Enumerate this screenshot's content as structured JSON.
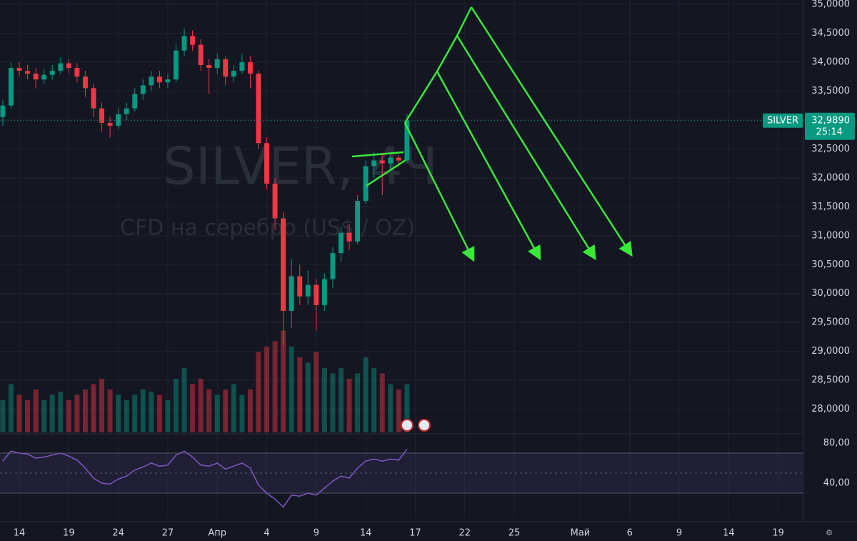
{
  "chart_data": {
    "type": "candlestick",
    "watermark_title": "SILVER, 4Ч",
    "watermark_subtitle": "CFD на серебро (US$ / OZ)",
    "symbol_tag": "SILVER",
    "countdown": "25:14",
    "last_price": {
      "value": 32.989,
      "label": "32,9890"
    },
    "up_color": "#089981",
    "down_color": "#f23645",
    "x": [
      -1.0,
      -0.5,
      0.0,
      0.5,
      1.0,
      1.5,
      2.0,
      2.5,
      3.0,
      3.5,
      4.0,
      4.5,
      5.0,
      5.5,
      6.0,
      6.5,
      7.0,
      7.5,
      8.0,
      8.5,
      9.0,
      9.5,
      10.0,
      10.5,
      11.0,
      11.5,
      12.0,
      12.5,
      13.0,
      13.5,
      14.0,
      14.5,
      15.0,
      15.5,
      16.0,
      16.5,
      17.0,
      17.5,
      18.0,
      18.5,
      19.0,
      19.5,
      20.0,
      20.5,
      21.0,
      21.5,
      22.0,
      22.5,
      23.0,
      23.5
    ],
    "open": [
      33.05,
      33.25,
      33.9,
      33.85,
      33.8,
      33.7,
      33.78,
      33.85,
      33.98,
      33.9,
      33.75,
      33.55,
      33.2,
      32.95,
      32.9,
      33.1,
      33.2,
      33.45,
      33.6,
      33.75,
      33.65,
      33.7,
      34.2,
      34.45,
      34.3,
      33.95,
      33.9,
      34.05,
      33.75,
      33.85,
      34.0,
      33.8,
      32.6,
      31.9,
      31.3,
      29.7,
      30.3,
      29.95,
      30.15,
      29.8,
      30.25,
      30.7,
      31.05,
      30.9,
      31.6,
      32.2,
      32.3,
      32.25,
      32.35,
      32.3
    ],
    "high": [
      33.35,
      34.0,
      34.0,
      33.95,
      33.9,
      33.88,
      33.95,
      34.08,
      34.05,
      33.98,
      33.85,
      33.62,
      33.3,
      33.05,
      33.2,
      33.3,
      33.55,
      33.7,
      33.85,
      33.85,
      33.8,
      34.3,
      34.58,
      34.55,
      34.4,
      34.05,
      34.15,
      34.1,
      33.95,
      34.15,
      34.1,
      33.85,
      32.7,
      32.0,
      31.4,
      30.6,
      30.5,
      30.4,
      30.25,
      30.35,
      30.8,
      31.15,
      31.2,
      31.7,
      32.3,
      32.45,
      32.4,
      32.45,
      32.4,
      33.1
    ],
    "low": [
      32.9,
      33.2,
      33.75,
      33.7,
      33.55,
      33.62,
      33.7,
      33.8,
      33.8,
      33.65,
      33.4,
      33.05,
      32.8,
      32.7,
      32.85,
      33.0,
      33.15,
      33.35,
      33.5,
      33.55,
      33.55,
      33.65,
      34.1,
      34.2,
      33.85,
      33.45,
      33.8,
      33.6,
      33.65,
      33.8,
      33.55,
      32.5,
      31.8,
      31.1,
      29.1,
      29.4,
      29.8,
      29.8,
      29.35,
      29.7,
      30.1,
      30.55,
      30.75,
      30.85,
      31.55,
      32.0,
      31.7,
      32.15,
      32.2,
      32.25
    ],
    "close": [
      33.25,
      33.9,
      33.85,
      33.8,
      33.7,
      33.78,
      33.85,
      33.98,
      33.9,
      33.75,
      33.55,
      33.2,
      32.95,
      32.9,
      33.1,
      33.2,
      33.45,
      33.6,
      33.75,
      33.65,
      33.7,
      34.2,
      34.45,
      34.3,
      33.95,
      33.9,
      34.05,
      33.75,
      33.85,
      34.0,
      33.8,
      32.6,
      31.9,
      31.3,
      29.7,
      30.3,
      29.95,
      30.15,
      29.8,
      30.25,
      30.7,
      31.05,
      30.9,
      31.6,
      32.2,
      32.3,
      32.25,
      32.35,
      32.3,
      32.99
    ],
    "volume": [
      30,
      45,
      35,
      30,
      40,
      30,
      35,
      38,
      30,
      35,
      40,
      45,
      50,
      40,
      35,
      30,
      35,
      40,
      38,
      35,
      30,
      50,
      60,
      45,
      50,
      40,
      35,
      40,
      45,
      35,
      40,
      75,
      80,
      85,
      95,
      80,
      70,
      65,
      75,
      60,
      55,
      60,
      50,
      55,
      70,
      60,
      55,
      45,
      40,
      45
    ],
    "volume_lim": [
      0,
      100
    ],
    "rsi": [
      62,
      72,
      70,
      69,
      65,
      66,
      68,
      70,
      67,
      63,
      55,
      45,
      40,
      39,
      44,
      47,
      53,
      56,
      60,
      57,
      58,
      68,
      72,
      66,
      58,
      57,
      60,
      54,
      57,
      60,
      55,
      38,
      30,
      24,
      16,
      28,
      27,
      30,
      28,
      35,
      42,
      47,
      45,
      55,
      62,
      64,
      62,
      64,
      63,
      74
    ],
    "rsi_color": "#7e57c2",
    "rsi_bands": [
      70,
      50,
      30
    ],
    "rsi_ylim": [
      5,
      88.6
    ],
    "rsi_ticks": [
      {
        "value": 80,
        "label": "80,00"
      },
      {
        "value": 40,
        "label": "40,00"
      }
    ],
    "xlim": [
      -1.17,
      47.53
    ],
    "xticks": [
      {
        "value": 0,
        "label": "14"
      },
      {
        "value": 3,
        "label": "19"
      },
      {
        "value": 6,
        "label": "24"
      },
      {
        "value": 9,
        "label": "27"
      },
      {
        "value": 12,
        "label": "Апр"
      },
      {
        "value": 15,
        "label": "4"
      },
      {
        "value": 18,
        "label": "9"
      },
      {
        "value": 21,
        "label": "14"
      },
      {
        "value": 24,
        "label": "17"
      },
      {
        "value": 27,
        "label": "22"
      },
      {
        "value": 30,
        "label": "25"
      },
      {
        "value": 34,
        "label": "Май"
      },
      {
        "value": 37,
        "label": "6"
      },
      {
        "value": 40,
        "label": "9"
      },
      {
        "value": 43,
        "label": "14"
      },
      {
        "value": 46,
        "label": "19"
      }
    ],
    "ylim": [
      27.6,
      35.074
    ],
    "yticks": [
      {
        "value": 35,
        "label": "35,0000"
      },
      {
        "value": 34.5,
        "label": "34,5000"
      },
      {
        "value": 34,
        "label": "34,0000"
      },
      {
        "value": 33.5,
        "label": "33,5000"
      },
      {
        "value": 33,
        "label": "33,0000"
      },
      {
        "value": 32.5,
        "label": "32,5000"
      },
      {
        "value": 32,
        "label": "32,0000"
      },
      {
        "value": 31.5,
        "label": "31,5000"
      },
      {
        "value": 31,
        "label": "31,0000"
      },
      {
        "value": 30.5,
        "label": "30,5000"
      },
      {
        "value": 30,
        "label": "30,0000"
      },
      {
        "value": 29.5,
        "label": "29,5000"
      },
      {
        "value": 29,
        "label": "29,0000"
      },
      {
        "value": 28.5,
        "label": "28,5000"
      },
      {
        "value": 28,
        "label": "28,0000"
      }
    ],
    "grid": true
  }
}
